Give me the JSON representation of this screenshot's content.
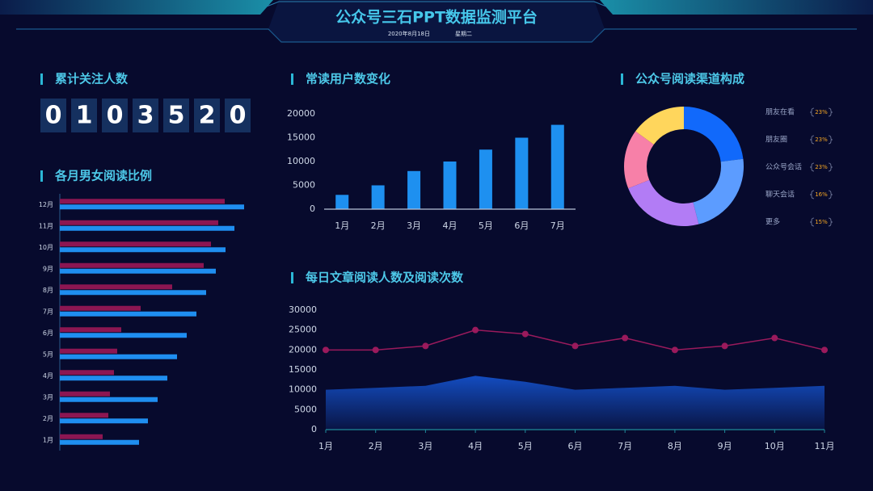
{
  "header": {
    "title": "公众号三石PPT数据监测平台",
    "date": "2020年8月18日",
    "weekday": "星期二"
  },
  "counter": {
    "title": "累计关注人数",
    "digits": [
      "0",
      "1",
      "0",
      "3",
      "5",
      "2",
      "0"
    ]
  },
  "chart_data": [
    {
      "type": "bar",
      "horizontal": true,
      "title": "各月男女阅读比例",
      "categories": [
        "1月",
        "2月",
        "3月",
        "4月",
        "5月",
        "6月",
        "7月",
        "8月",
        "9月",
        "10月",
        "11月",
        "12月"
      ],
      "series": [
        {
          "color": "#8c1652",
          "values": [
            53,
            60,
            62,
            67,
            71,
            76,
            100,
            139,
            178,
            187,
            196,
            204
          ]
        },
        {
          "color": "#1f8ef0",
          "values": [
            98,
            109,
            121,
            133,
            145,
            157,
            169,
            181,
            193,
            205,
            216,
            228
          ]
        }
      ]
    },
    {
      "type": "bar",
      "title": "常读用户数变化",
      "categories": [
        "1月",
        "2月",
        "3月",
        "4月",
        "5月",
        "6月",
        "7月"
      ],
      "values": [
        3000,
        5000,
        8000,
        10000,
        12500,
        15000,
        17700
      ],
      "color": "#1e90f0",
      "ylim": [
        0,
        20000
      ],
      "yticks": [
        0,
        5000,
        10000,
        15000,
        20000
      ]
    },
    {
      "type": "pie",
      "donut": true,
      "title": "公众号阅读渠道构成",
      "categories": [
        "朋友在看",
        "朋友圈",
        "公众号会话",
        "聊天会话",
        "更多"
      ],
      "values": [
        23,
        23,
        23,
        16,
        15
      ],
      "value_labels": [
        "23%",
        "23%",
        "23%",
        "16%",
        "15%"
      ],
      "colors": [
        "#1169fb",
        "#5c9cff",
        "#b27cf5",
        "#f780a8",
        "#ffd65c"
      ]
    },
    {
      "type": "line",
      "title": "每日文章阅读人数及阅读次数",
      "categories": [
        "1月",
        "2月",
        "3月",
        "4月",
        "5月",
        "6月",
        "7月",
        "8月",
        "9月",
        "10月",
        "11月"
      ],
      "ylim": [
        0,
        30000
      ],
      "yticks": [
        0,
        5000,
        10000,
        15000,
        20000,
        25000,
        30000
      ],
      "series": [
        {
          "fill": true,
          "color": "#1450c8",
          "values": [
            10000,
            10500,
            11000,
            13500,
            12000,
            10000,
            10500,
            11000,
            10000,
            10500,
            11000
          ]
        },
        {
          "fill": false,
          "color": "#9a1a5c",
          "values": [
            20000,
            20000,
            21000,
            25000,
            24000,
            21000,
            23000,
            20000,
            21000,
            23000,
            20000
          ]
        }
      ]
    }
  ]
}
